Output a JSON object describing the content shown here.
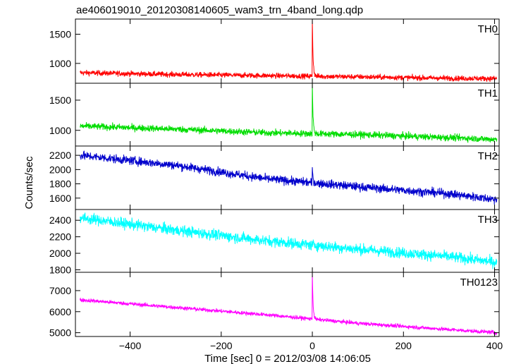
{
  "chart_data": {
    "type": "line",
    "title": "ae406019010_20120308140605_wam3_trn_4band_long.qdp",
    "xlabel": "Time [sec] 0 = 2012/03/08 14:06:05",
    "ylabel": "Counts/sec",
    "xlim": [
      -520,
      410
    ],
    "x_ticks": [
      -400,
      -200,
      0,
      200,
      400
    ],
    "grid": false,
    "panels": [
      {
        "name": "TH0",
        "color": "#ff0000",
        "ylim": [
          660,
          1760
        ],
        "y_ticks": [
          1000,
          1500
        ],
        "trend": [
          [
            -510,
            840
          ],
          [
            -300,
            810
          ],
          [
            -100,
            790
          ],
          [
            100,
            770
          ],
          [
            300,
            745
          ],
          [
            405,
            740
          ]
        ],
        "noise": 45,
        "burst": {
          "x": 0,
          "peak": 1760
        }
      },
      {
        "name": "TH1",
        "color": "#00dd00",
        "ylim": [
          740,
          1780
        ],
        "y_ticks": [
          1000,
          1500
        ],
        "trend": [
          [
            -510,
            1070
          ],
          [
            -300,
            1020
          ],
          [
            -100,
            960
          ],
          [
            100,
            930
          ],
          [
            300,
            880
          ],
          [
            405,
            850
          ]
        ],
        "noise": 55,
        "burst": {
          "x": 0,
          "peak": 1740
        }
      },
      {
        "name": "TH2",
        "color": "#0000cc",
        "ylim": [
          1440,
          2330
        ],
        "y_ticks": [
          1600,
          1800,
          2000,
          2200
        ],
        "trend": [
          [
            -510,
            2200
          ],
          [
            -300,
            2060
          ],
          [
            -100,
            1870
          ],
          [
            100,
            1760
          ],
          [
            300,
            1660
          ],
          [
            405,
            1580
          ]
        ],
        "noise": 60,
        "burst": {
          "x": 0,
          "peak": 2020
        }
      },
      {
        "name": "TH3",
        "color": "#00ffff",
        "ylim": [
          1770,
          2530
        ],
        "y_ticks": [
          1800,
          2000,
          2200,
          2400
        ],
        "trend": [
          [
            -510,
            2430
          ],
          [
            -300,
            2280
          ],
          [
            -100,
            2150
          ],
          [
            100,
            2050
          ],
          [
            300,
            1960
          ],
          [
            405,
            1890
          ]
        ],
        "noise": 65,
        "burst": null
      },
      {
        "name": "TH0123",
        "color": "#ff00ff",
        "ylim": [
          4820,
          7870
        ],
        "y_ticks": [
          5000,
          6000,
          7000
        ],
        "trend": [
          [
            -510,
            6560
          ],
          [
            -300,
            6200
          ],
          [
            -100,
            5850
          ],
          [
            100,
            5450
          ],
          [
            300,
            5150
          ],
          [
            405,
            5000
          ]
        ],
        "noise": 90,
        "burst": {
          "x": 0,
          "peak": 7870
        }
      }
    ]
  }
}
